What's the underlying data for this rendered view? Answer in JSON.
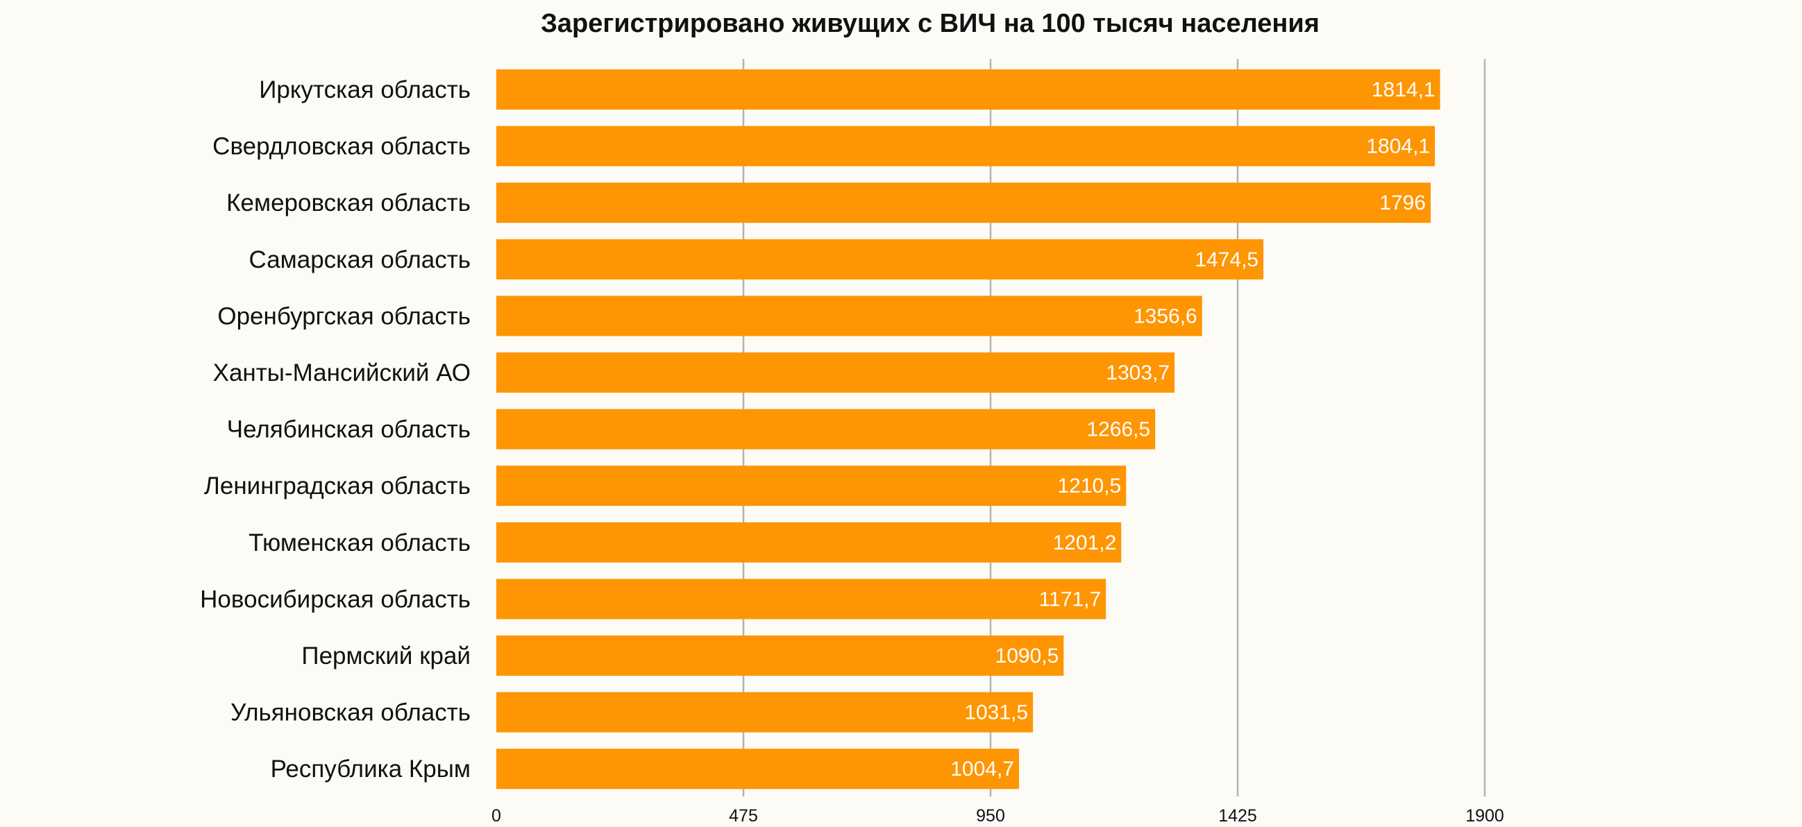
{
  "chart_data": {
    "type": "bar",
    "orientation": "horizontal",
    "title": "Зарегистрировано живущих с ВИЧ на 100 тысяч населения",
    "categories": [
      "Иркутская область",
      "Свердловская область",
      "Кемеровская область",
      "Самарская область",
      "Оренбургская область",
      "Ханты-Мансийский АО",
      "Челябинская область",
      "Ленинградская область",
      "Тюменская область",
      "Новосибирская область",
      "Пермский край",
      "Ульяновская область",
      "Республика Крым"
    ],
    "values": [
      1814.1,
      1804.1,
      1796,
      1474.5,
      1356.6,
      1303.7,
      1266.5,
      1210.5,
      1201.2,
      1171.7,
      1090.5,
      1031.5,
      1004.7
    ],
    "value_labels": [
      "1814,1",
      "1804,1",
      "1796",
      "1474,5",
      "1356,6",
      "1303,7",
      "1266,5",
      "1210,5",
      "1201,2",
      "1171,7",
      "1090,5",
      "1031,5",
      "1004,7"
    ],
    "xlim": [
      0,
      1900
    ],
    "xticks": [
      0,
      475,
      950,
      1425,
      1900
    ],
    "xtick_labels": [
      "0",
      "475",
      "950",
      "1425",
      "1900"
    ],
    "xlabel": "",
    "ylabel": "",
    "grid": true,
    "legend": "none",
    "colors": {
      "bar": "#fe9502",
      "background": "#fcfbf6",
      "grid": "#b3b3b3",
      "text": "#111111",
      "value_text": "#ffffff"
    }
  }
}
